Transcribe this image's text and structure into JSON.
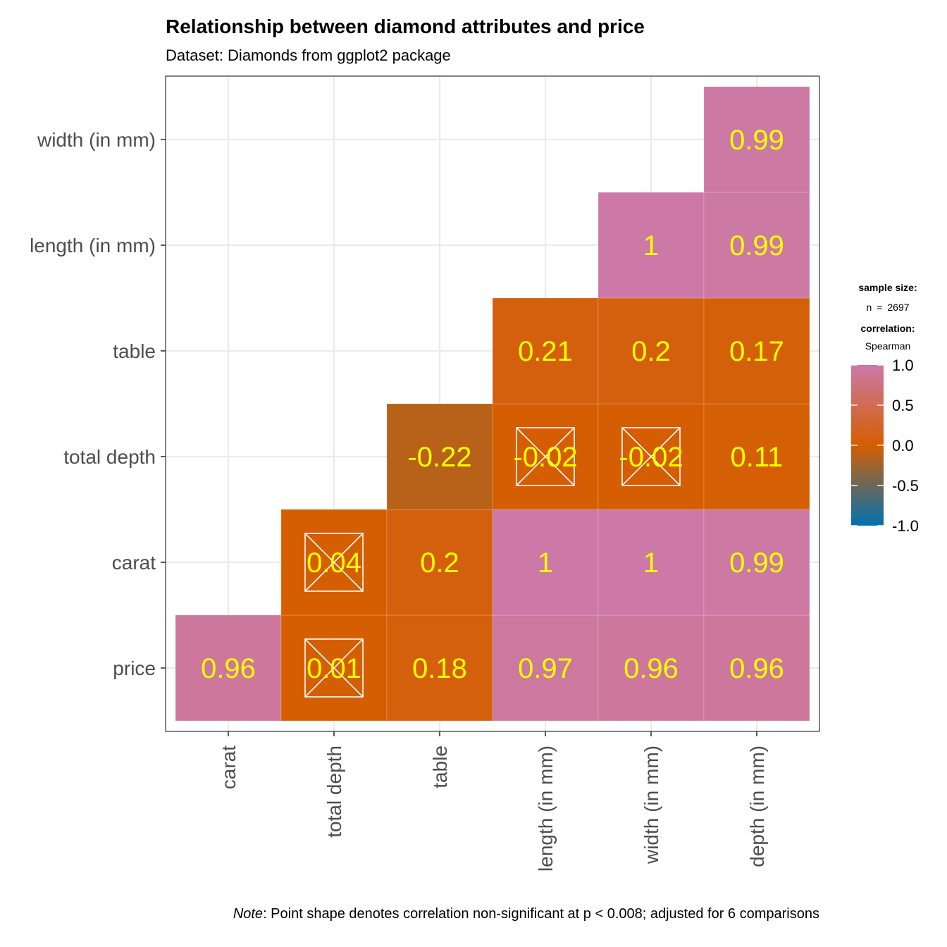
{
  "title": "Relationship between diamond attributes and price",
  "subtitle": "Dataset: Diamonds from ggplot2 package",
  "caption_note": "Note",
  "caption_text": ": Point shape denotes correlation non-significant at p < 0.008; adjusted for 6 comparisons",
  "legend": {
    "sample_size_label": "sample size:",
    "sample_size_value": "n = 2697",
    "correlation_label": "correlation:",
    "correlation_value": "Spearman",
    "ticks": [
      "1.0",
      "0.5",
      "0.0",
      "-0.5",
      "-1.0"
    ],
    "tick_values": [
      1.0,
      0.5,
      0.0,
      -0.5,
      -1.0
    ],
    "colors": {
      "high": "#cc79a7",
      "mid": "#d55e00",
      "low": "#0072b2"
    }
  },
  "chart_data": {
    "type": "heatmap",
    "x_categories": [
      "carat",
      "total depth",
      "table",
      "length (in mm)",
      "width (in mm)",
      "depth (in mm)"
    ],
    "y_categories": [
      "price",
      "carat",
      "total depth",
      "table",
      "length (in mm)",
      "width (in mm)"
    ],
    "cells": [
      {
        "x": "carat",
        "y": "price",
        "value": 0.96,
        "label": "0.96",
        "nonsignificant": false
      },
      {
        "x": "total depth",
        "y": "price",
        "value": 0.01,
        "label": "0.01",
        "nonsignificant": true
      },
      {
        "x": "table",
        "y": "price",
        "value": 0.18,
        "label": "0.18",
        "nonsignificant": false
      },
      {
        "x": "length (in mm)",
        "y": "price",
        "value": 0.97,
        "label": "0.97",
        "nonsignificant": false
      },
      {
        "x": "width (in mm)",
        "y": "price",
        "value": 0.96,
        "label": "0.96",
        "nonsignificant": false
      },
      {
        "x": "depth (in mm)",
        "y": "price",
        "value": 0.96,
        "label": "0.96",
        "nonsignificant": false
      },
      {
        "x": "total depth",
        "y": "carat",
        "value": 0.04,
        "label": "0.04",
        "nonsignificant": true
      },
      {
        "x": "table",
        "y": "carat",
        "value": 0.2,
        "label": "0.2",
        "nonsignificant": false
      },
      {
        "x": "length (in mm)",
        "y": "carat",
        "value": 1,
        "label": "1",
        "nonsignificant": false
      },
      {
        "x": "width (in mm)",
        "y": "carat",
        "value": 1,
        "label": "1",
        "nonsignificant": false
      },
      {
        "x": "depth (in mm)",
        "y": "carat",
        "value": 0.99,
        "label": "0.99",
        "nonsignificant": false
      },
      {
        "x": "table",
        "y": "total depth",
        "value": -0.22,
        "label": "-0.22",
        "nonsignificant": false
      },
      {
        "x": "length (in mm)",
        "y": "total depth",
        "value": -0.02,
        "label": "-0.02",
        "nonsignificant": true
      },
      {
        "x": "width (in mm)",
        "y": "total depth",
        "value": -0.02,
        "label": "-0.02",
        "nonsignificant": true
      },
      {
        "x": "depth (in mm)",
        "y": "total depth",
        "value": 0.11,
        "label": "0.11",
        "nonsignificant": false
      },
      {
        "x": "length (in mm)",
        "y": "table",
        "value": 0.21,
        "label": "0.21",
        "nonsignificant": false
      },
      {
        "x": "width (in mm)",
        "y": "table",
        "value": 0.2,
        "label": "0.2",
        "nonsignificant": false
      },
      {
        "x": "depth (in mm)",
        "y": "table",
        "value": 0.17,
        "label": "0.17",
        "nonsignificant": false
      },
      {
        "x": "width (in mm)",
        "y": "length (in mm)",
        "value": 1,
        "label": "1",
        "nonsignificant": false
      },
      {
        "x": "depth (in mm)",
        "y": "length (in mm)",
        "value": 0.99,
        "label": "0.99",
        "nonsignificant": false
      },
      {
        "x": "depth (in mm)",
        "y": "width (in mm)",
        "value": 0.99,
        "label": "0.99",
        "nonsignificant": false
      }
    ],
    "value_range": [
      -1,
      1
    ],
    "grid": true,
    "legend_position": "right",
    "label_color": "#ffff00"
  }
}
